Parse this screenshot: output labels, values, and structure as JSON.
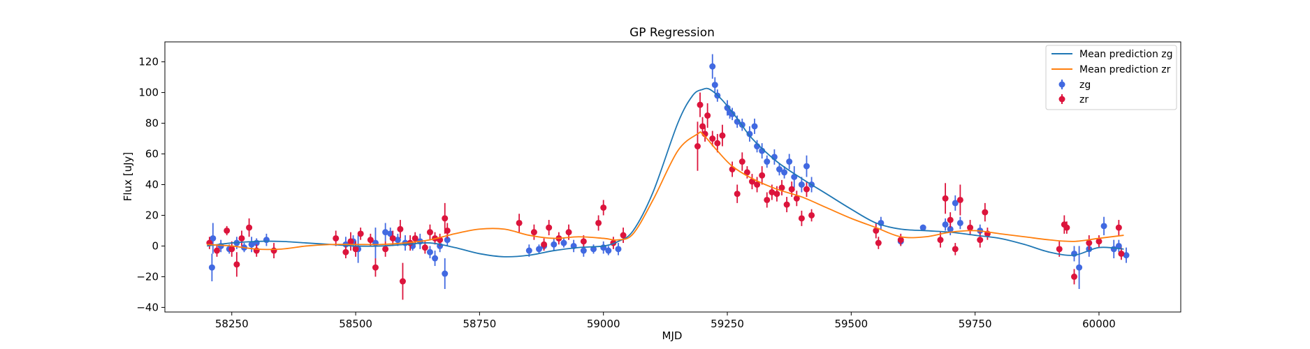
{
  "chart_data": {
    "type": "scatter",
    "title": "GP Regression",
    "xlabel": "MJD",
    "ylabel": "Flux [uJy]",
    "xlim": [
      58115,
      60165
    ],
    "ylim": [
      -43,
      133
    ],
    "xticks": [
      58250,
      58500,
      58750,
      59000,
      59250,
      59500,
      59750,
      60000
    ],
    "yticks": [
      -40,
      -20,
      0,
      20,
      40,
      60,
      80,
      100,
      120
    ],
    "grid": false,
    "legend": {
      "placement": "top-right",
      "entries": [
        "Mean prediction zg",
        "Mean prediction zr",
        "zg",
        "zr"
      ]
    },
    "colors": {
      "mean_zg": "#1f77b4",
      "mean_zr": "#ff7f0e",
      "zg": "#4169e1",
      "zr": "#dc143c"
    },
    "series": [
      {
        "name": "Mean prediction zg",
        "kind": "line",
        "x": [
          58200,
          58250,
          58300,
          58350,
          58400,
          58450,
          58500,
          58550,
          58600,
          58650,
          58700,
          58750,
          58800,
          58850,
          58900,
          58950,
          59000,
          59030,
          59060,
          59100,
          59150,
          59180,
          59200,
          59215,
          59240,
          59270,
          59300,
          59350,
          59400,
          59450,
          59500,
          59550,
          59600,
          59650,
          59700,
          59750,
          59800,
          59850,
          59900,
          59950,
          60000,
          60050
        ],
        "y": [
          0,
          2,
          3,
          3,
          2,
          1,
          0,
          0,
          1,
          2,
          -1,
          -5,
          -7,
          -6,
          -3,
          -1,
          0,
          3,
          10,
          35,
          80,
          98,
          102,
          102,
          95,
          83,
          70,
          55,
          44,
          34,
          24,
          15,
          11,
          10,
          9,
          7,
          5,
          1,
          -4,
          -6,
          -1,
          -2
        ]
      },
      {
        "name": "Mean prediction zr",
        "kind": "line",
        "x": [
          58200,
          58250,
          58300,
          58350,
          58400,
          58450,
          58500,
          58550,
          58600,
          58650,
          58700,
          58750,
          58800,
          58850,
          58900,
          58950,
          59000,
          59030,
          59060,
          59100,
          59150,
          59190,
          59200,
          59230,
          59260,
          59300,
          59350,
          59400,
          59450,
          59500,
          59550,
          59600,
          59650,
          59700,
          59750,
          59800,
          59850,
          59900,
          59950,
          60000,
          60050
        ],
        "y": [
          1,
          0,
          -2,
          -2,
          0,
          1,
          1,
          1,
          2,
          4,
          8,
          11,
          11,
          7,
          5,
          6,
          5,
          4,
          8,
          30,
          62,
          73,
          73,
          62,
          52,
          44,
          37,
          32,
          25,
          18,
          12,
          6,
          6,
          9,
          10,
          8,
          6,
          4,
          3,
          5,
          7
        ]
      },
      {
        "name": "zg",
        "kind": "points",
        "x": [
          58210,
          58212,
          58228,
          58245,
          58260,
          58275,
          58290,
          58300,
          58320,
          58480,
          58495,
          58505,
          58540,
          58560,
          58570,
          58585,
          58600,
          58615,
          58630,
          58650,
          58660,
          58670,
          58680,
          58685,
          58850,
          58870,
          58880,
          58900,
          58920,
          58940,
          58960,
          58980,
          59000,
          59010,
          59030,
          59220,
          59225,
          59230,
          59250,
          59255,
          59260,
          59270,
          59280,
          59295,
          59305,
          59310,
          59320,
          59330,
          59345,
          59355,
          59365,
          59375,
          59385,
          59400,
          59410,
          59420,
          59560,
          59600,
          59645,
          59690,
          59700,
          59710,
          59720,
          59760,
          59950,
          59960,
          59980,
          60010,
          60030,
          60040,
          60055
        ],
        "y": [
          -14,
          5,
          0,
          -2,
          2,
          -1,
          1,
          2,
          4,
          1,
          3,
          -2,
          2,
          9,
          8,
          4,
          2,
          0,
          3,
          -4,
          -8,
          0,
          -18,
          4,
          -3,
          -2,
          0,
          1,
          2,
          0,
          -3,
          -2,
          -1,
          -3,
          -2,
          117,
          105,
          98,
          90,
          87,
          86,
          81,
          79,
          73,
          78,
          65,
          62,
          55,
          58,
          50,
          48,
          55,
          45,
          40,
          52,
          40,
          15,
          3,
          12,
          14,
          11,
          28,
          15,
          10,
          -5,
          -14,
          -2,
          13,
          -2,
          0,
          -6
        ],
        "err": [
          9,
          10,
          4,
          3,
          4,
          3,
          5,
          3,
          4,
          5,
          4,
          9,
          10,
          6,
          4,
          4,
          5,
          3,
          5,
          4,
          5,
          4,
          10,
          4,
          4,
          3,
          3,
          4,
          3,
          4,
          4,
          3,
          4,
          3,
          4,
          8,
          5,
          4,
          5,
          4,
          4,
          4,
          4,
          5,
          5,
          4,
          5,
          4,
          5,
          4,
          4,
          5,
          7,
          5,
          7,
          5,
          4,
          3,
          2,
          4,
          4,
          5,
          4,
          4,
          5,
          14,
          5,
          6,
          6,
          4,
          5
        ],
        "marker_size": 5
      },
      {
        "name": "zr",
        "kind": "points",
        "x": [
          58205,
          58220,
          58240,
          58250,
          58260,
          58270,
          58285,
          58300,
          58335,
          58460,
          58480,
          58490,
          58500,
          58510,
          58530,
          58540,
          58560,
          58575,
          58590,
          58595,
          58610,
          58620,
          58640,
          58650,
          58660,
          58670,
          58680,
          58685,
          58830,
          58860,
          58880,
          58890,
          58910,
          58930,
          58960,
          58990,
          59000,
          59020,
          59040,
          59190,
          59195,
          59200,
          59205,
          59210,
          59220,
          59230,
          59240,
          59260,
          59270,
          59280,
          59290,
          59300,
          59310,
          59320,
          59330,
          59340,
          59350,
          59360,
          59370,
          59380,
          59390,
          59400,
          59410,
          59420,
          59550,
          59555,
          59600,
          59680,
          59690,
          59700,
          59710,
          59720,
          59740,
          59760,
          59770,
          59775,
          59920,
          59930,
          59935,
          59950,
          59980,
          60000,
          60040,
          60045
        ],
        "y": [
          2,
          -3,
          10,
          -2,
          -12,
          5,
          12,
          -3,
          -3,
          5,
          -4,
          3,
          -2,
          8,
          4,
          -14,
          -2,
          5,
          11,
          -23,
          2,
          5,
          -1,
          9,
          5,
          4,
          18,
          10,
          15,
          9,
          1,
          12,
          5,
          9,
          3,
          15,
          25,
          2,
          7,
          65,
          92,
          78,
          73,
          85,
          70,
          67,
          72,
          50,
          34,
          55,
          48,
          42,
          40,
          46,
          30,
          35,
          34,
          38,
          27,
          37,
          31,
          18,
          37,
          20,
          10,
          2,
          4,
          4,
          31,
          17,
          -2,
          30,
          12,
          4,
          22,
          8,
          -2,
          14,
          12,
          -20,
          2,
          3,
          12,
          -5
        ],
        "err": [
          4,
          4,
          3,
          5,
          8,
          5,
          6,
          4,
          5,
          5,
          4,
          6,
          5,
          4,
          4,
          6,
          5,
          5,
          6,
          12,
          5,
          4,
          4,
          5,
          4,
          4,
          10,
          5,
          6,
          5,
          4,
          5,
          4,
          5,
          4,
          5,
          5,
          4,
          5,
          16,
          8,
          6,
          5,
          8,
          5,
          6,
          7,
          5,
          6,
          6,
          4,
          5,
          5,
          6,
          5,
          5,
          5,
          5,
          5,
          5,
          5,
          5,
          5,
          4,
          5,
          4,
          4,
          5,
          10,
          5,
          4,
          10,
          5,
          5,
          6,
          4,
          5,
          6,
          4,
          5,
          5,
          4,
          5,
          4
        ],
        "marker_size": 5
      }
    ]
  }
}
